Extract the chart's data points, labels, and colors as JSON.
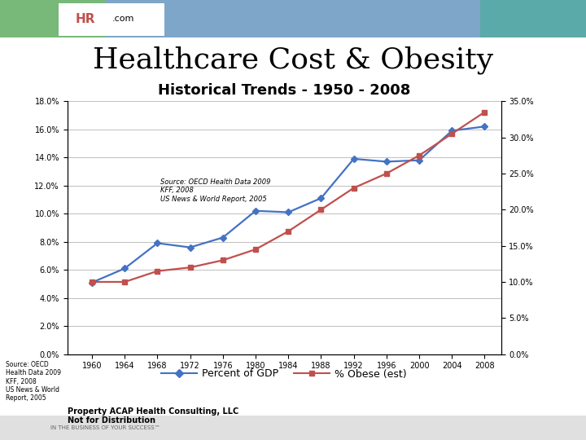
{
  "title_main": "Healthcare Cost & Obesity",
  "chart_title": "Historical Trends - 1950 - 2008",
  "years": [
    1960,
    1964,
    1968,
    1972,
    1976,
    1980,
    1984,
    1988,
    1992,
    1996,
    2000,
    2004,
    2008
  ],
  "gdp_percent": [
    5.1,
    6.1,
    7.9,
    7.6,
    8.3,
    10.2,
    10.1,
    11.1,
    13.9,
    13.7,
    13.8,
    15.9,
    16.2
  ],
  "obese_percent": [
    10.0,
    10.0,
    11.5,
    12.0,
    13.0,
    14.5,
    17.0,
    20.0,
    23.0,
    25.0,
    27.5,
    30.5,
    33.5
  ],
  "gdp_color": "#4472C4",
  "obese_color": "#C0504D",
  "left_ylim": [
    0.0,
    0.18
  ],
  "right_ylim": [
    0.0,
    0.35
  ],
  "left_yticks": [
    0.0,
    0.02,
    0.04,
    0.06,
    0.08,
    0.1,
    0.12,
    0.14,
    0.16,
    0.18
  ],
  "right_yticks": [
    0.0,
    0.05,
    0.1,
    0.15,
    0.2,
    0.25,
    0.3,
    0.35
  ],
  "legend_gdp": "Percent of GDP",
  "legend_obese": "% Obese (est)",
  "source_text_inner": "Source: OECD Health Data 2009\nKFF, 2008\nUS News & World Report, 2005",
  "source_text_outer": "Source: OECD\nHealth Data 2009\nKFF, 2008\nUS News & World\nReport, 2005",
  "property_text": "Property ACAP Health Consulting, LLC\nNot for Distribution",
  "header_color_left": "#6BAD6B",
  "header_color_right": "#4472C4",
  "bg_gray": "#D0D0D0",
  "bg_white": "#FFFFFF",
  "grid_color": "#BFBFBF",
  "title_fontsize": 26,
  "chart_title_fontsize": 13,
  "tick_fontsize": 7,
  "legend_fontsize": 9,
  "source_inner_fontsize": 6,
  "source_outer_fontsize": 5.5,
  "property_fontsize": 7
}
